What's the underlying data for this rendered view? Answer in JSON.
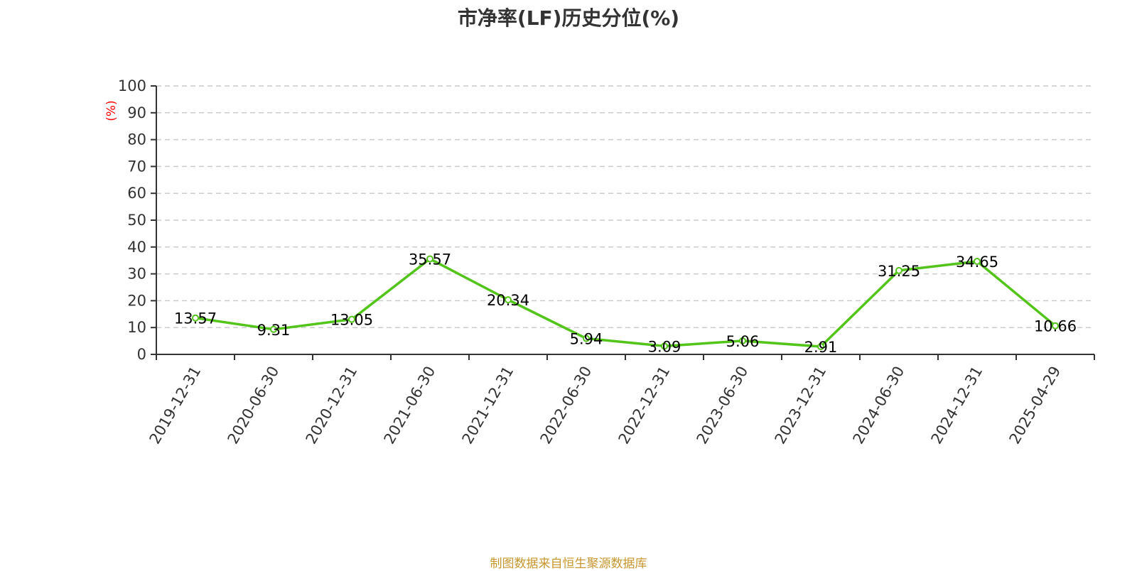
{
  "chart_data": {
    "type": "line",
    "title": "市净率(LF)历史分位(%)",
    "ylabel": "(%)",
    "categories": [
      "2019-12-31",
      "2020-06-30",
      "2020-12-31",
      "2021-06-30",
      "2021-12-31",
      "2022-06-30",
      "2022-12-31",
      "2023-06-30",
      "2023-12-31",
      "2024-06-30",
      "2024-12-31",
      "2025-04-29"
    ],
    "series": [
      {
        "values": [
          13.57,
          9.31,
          13.05,
          35.57,
          20.34,
          5.94,
          3.09,
          5.06,
          2.91,
          31.25,
          34.65,
          10.66
        ]
      }
    ],
    "ylim": [
      0,
      100
    ],
    "yticks": [
      0,
      10,
      20,
      30,
      40,
      50,
      60,
      70,
      80,
      90,
      100
    ],
    "grid": "horizontal-dashed",
    "legend": "none",
    "colors": {
      "line": "#52c41a",
      "axis": "#333333",
      "grid": "#cccccc",
      "ylabel": "#ff0000"
    }
  },
  "source": "制图数据来自恒生聚源数据库"
}
